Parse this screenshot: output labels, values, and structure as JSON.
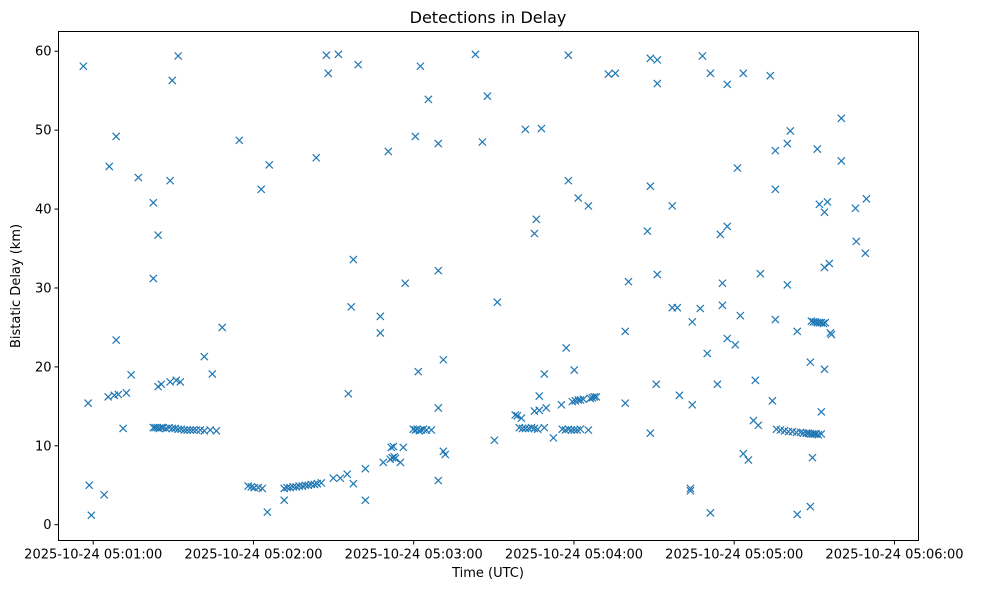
{
  "chart_data": {
    "type": "scatter",
    "title": "Detections in Delay",
    "xlabel": "Time (UTC)",
    "ylabel": "Bistatic Delay (km)",
    "x_unit": "seconds after 2025-10-24 05:00:00",
    "xlim": [
      47,
      369
    ],
    "ylim": [
      -2,
      62.5
    ],
    "xticks": [
      {
        "value": 60,
        "label": "2025-10-24 05:01:00"
      },
      {
        "value": 120,
        "label": "2025-10-24 05:02:00"
      },
      {
        "value": 180,
        "label": "2025-10-24 05:03:00"
      },
      {
        "value": 240,
        "label": "2025-10-24 05:04:00"
      },
      {
        "value": 300,
        "label": "2025-10-24 05:05:00"
      },
      {
        "value": 360,
        "label": "2025-10-24 05:06:00"
      }
    ],
    "yticks": [
      {
        "value": 0,
        "label": "0"
      },
      {
        "value": 10,
        "label": "10"
      },
      {
        "value": 20,
        "label": "20"
      },
      {
        "value": 30,
        "label": "30"
      },
      {
        "value": 40,
        "label": "40"
      },
      {
        "value": 50,
        "label": "50"
      },
      {
        "value": 60,
        "label": "60"
      }
    ],
    "grid": false,
    "marker": "x",
    "color": "#1f77b4",
    "points": [
      [
        56.3,
        58.1
      ],
      [
        58.1,
        15.4
      ],
      [
        58.5,
        5.0
      ],
      [
        59.3,
        1.2
      ],
      [
        64.1,
        3.8
      ],
      [
        66.0,
        45.4
      ],
      [
        65.6,
        16.2
      ],
      [
        67.9,
        16.4
      ],
      [
        69.4,
        16.5
      ],
      [
        72.4,
        16.7
      ],
      [
        68.6,
        49.2
      ],
      [
        68.6,
        23.4
      ],
      [
        71.2,
        12.2
      ],
      [
        74.2,
        19.0
      ],
      [
        76.9,
        44.0
      ],
      [
        82.5,
        40.8
      ],
      [
        84.3,
        36.7
      ],
      [
        82.5,
        31.2
      ],
      [
        88.8,
        43.6
      ],
      [
        89.6,
        56.3
      ],
      [
        91.8,
        59.4
      ],
      [
        84.3,
        17.5
      ],
      [
        85.5,
        17.8
      ],
      [
        88.8,
        18.1
      ],
      [
        91.1,
        18.3
      ],
      [
        92.6,
        18.1
      ],
      [
        82.5,
        12.3
      ],
      [
        83.2,
        12.3
      ],
      [
        84.0,
        12.3
      ],
      [
        84.7,
        12.2
      ],
      [
        85.5,
        12.3
      ],
      [
        86.2,
        12.3
      ],
      [
        87.3,
        12.2
      ],
      [
        88.4,
        12.3
      ],
      [
        89.6,
        12.2
      ],
      [
        90.7,
        12.2
      ],
      [
        91.8,
        12.1
      ],
      [
        92.9,
        12.1
      ],
      [
        94.1,
        12.0
      ],
      [
        95.2,
        12.0
      ],
      [
        96.3,
        12.0
      ],
      [
        97.4,
        12.0
      ],
      [
        98.6,
        12.0
      ],
      [
        100.1,
        12.0
      ],
      [
        101.6,
        11.9
      ],
      [
        103.8,
        12.0
      ],
      [
        106.1,
        11.9
      ],
      [
        101.6,
        21.3
      ],
      [
        104.6,
        19.1
      ],
      [
        108.3,
        25.0
      ],
      [
        114.7,
        48.7
      ],
      [
        118.0,
        4.9
      ],
      [
        119.2,
        4.8
      ],
      [
        120.3,
        4.7
      ],
      [
        121.8,
        4.7
      ],
      [
        123.3,
        4.6
      ],
      [
        125.2,
        1.6
      ],
      [
        122.9,
        42.5
      ],
      [
        125.9,
        45.6
      ],
      [
        131.5,
        3.1
      ],
      [
        131.5,
        4.6
      ],
      [
        132.6,
        4.7
      ],
      [
        133.7,
        4.7
      ],
      [
        134.9,
        4.8
      ],
      [
        136.0,
        4.8
      ],
      [
        137.1,
        4.9
      ],
      [
        138.3,
        4.9
      ],
      [
        139.4,
        5.0
      ],
      [
        140.5,
        5.0
      ],
      [
        141.6,
        5.1
      ],
      [
        142.8,
        5.1
      ],
      [
        143.9,
        5.2
      ],
      [
        145.4,
        5.3
      ],
      [
        149.9,
        5.9
      ],
      [
        152.5,
        5.9
      ],
      [
        155.1,
        6.4
      ],
      [
        157.4,
        5.2
      ],
      [
        161.9,
        7.1
      ],
      [
        161.9,
        3.1
      ],
      [
        155.5,
        16.6
      ],
      [
        156.6,
        27.6
      ],
      [
        157.4,
        33.6
      ],
      [
        147.3,
        59.5
      ],
      [
        148.0,
        57.2
      ],
      [
        151.8,
        59.6
      ],
      [
        159.2,
        58.3
      ],
      [
        143.5,
        46.5
      ],
      [
        167.5,
        26.4
      ],
      [
        167.5,
        24.3
      ],
      [
        170.5,
        47.3
      ],
      [
        176.8,
        30.6
      ],
      [
        168.6,
        7.9
      ],
      [
        171.2,
        8.3
      ],
      [
        172.0,
        8.5
      ],
      [
        172.7,
        8.6
      ],
      [
        173.1,
        8.4
      ],
      [
        171.6,
        9.8
      ],
      [
        172.4,
        9.9
      ],
      [
        176.1,
        9.8
      ],
      [
        175.0,
        7.9
      ],
      [
        180.6,
        49.2
      ],
      [
        182.5,
        58.1
      ],
      [
        185.5,
        53.9
      ],
      [
        189.2,
        48.3
      ],
      [
        189.2,
        32.2
      ],
      [
        181.7,
        19.4
      ],
      [
        191.1,
        20.9
      ],
      [
        189.2,
        14.8
      ],
      [
        179.8,
        12.1
      ],
      [
        180.6,
        12.0
      ],
      [
        181.3,
        12.1
      ],
      [
        182.1,
        11.9
      ],
      [
        182.8,
        12.0
      ],
      [
        183.6,
        12.1
      ],
      [
        184.8,
        12.0
      ],
      [
        186.6,
        12.0
      ],
      [
        191.1,
        9.3
      ],
      [
        191.8,
        8.9
      ],
      [
        189.2,
        5.6
      ],
      [
        203.1,
        59.6
      ],
      [
        207.6,
        54.3
      ],
      [
        205.7,
        48.5
      ],
      [
        211.3,
        28.2
      ],
      [
        210.2,
        10.7
      ],
      [
        221.8,
        50.1
      ],
      [
        227.8,
        50.2
      ],
      [
        225.9,
        38.7
      ],
      [
        225.2,
        36.9
      ],
      [
        218.0,
        13.9
      ],
      [
        218.8,
        13.8
      ],
      [
        220.3,
        13.5
      ],
      [
        219.5,
        12.3
      ],
      [
        220.7,
        12.2
      ],
      [
        221.8,
        12.2
      ],
      [
        223.0,
        12.2
      ],
      [
        224.1,
        12.3
      ],
      [
        225.2,
        12.2
      ],
      [
        226.4,
        12.1
      ],
      [
        228.9,
        12.3
      ],
      [
        225.2,
        14.4
      ],
      [
        227.0,
        14.5
      ],
      [
        229.6,
        14.8
      ],
      [
        227.0,
        16.3
      ],
      [
        228.9,
        19.1
      ],
      [
        232.3,
        11.0
      ],
      [
        235.3,
        15.2
      ],
      [
        237.1,
        22.4
      ],
      [
        237.9,
        43.6
      ],
      [
        237.9,
        59.5
      ],
      [
        240.1,
        19.6
      ],
      [
        239.4,
        15.6
      ],
      [
        240.5,
        15.7
      ],
      [
        241.6,
        15.8
      ],
      [
        242.4,
        15.8
      ],
      [
        243.5,
        15.9
      ],
      [
        246.1,
        16.0
      ],
      [
        246.9,
        16.1
      ],
      [
        247.6,
        16.2
      ],
      [
        248.4,
        16.2
      ],
      [
        235.6,
        12.1
      ],
      [
        236.8,
        12.0
      ],
      [
        237.9,
        12.1
      ],
      [
        239.0,
        12.0
      ],
      [
        240.1,
        12.0
      ],
      [
        241.2,
        12.0
      ],
      [
        242.4,
        12.1
      ],
      [
        245.4,
        12.0
      ],
      [
        241.6,
        41.4
      ],
      [
        245.4,
        40.4
      ],
      [
        259.2,
        15.4
      ],
      [
        259.2,
        24.5
      ],
      [
        260.4,
        30.8
      ],
      [
        252.9,
        57.1
      ],
      [
        255.5,
        57.2
      ],
      [
        268.6,
        59.1
      ],
      [
        271.2,
        58.9
      ],
      [
        271.2,
        55.9
      ],
      [
        268.6,
        42.9
      ],
      [
        267.5,
        37.2
      ],
      [
        271.2,
        31.7
      ],
      [
        268.6,
        11.6
      ],
      [
        270.8,
        17.8
      ],
      [
        276.8,
        40.4
      ],
      [
        276.8,
        27.5
      ],
      [
        278.7,
        27.5
      ],
      [
        279.5,
        16.4
      ],
      [
        284.3,
        25.7
      ],
      [
        287.3,
        27.4
      ],
      [
        284.3,
        15.2
      ],
      [
        283.6,
        4.6
      ],
      [
        283.6,
        4.3
      ],
      [
        291.1,
        1.5
      ],
      [
        288.1,
        59.4
      ],
      [
        291.1,
        57.2
      ],
      [
        297.4,
        55.8
      ],
      [
        303.4,
        57.2
      ],
      [
        313.5,
        56.9
      ],
      [
        301.2,
        45.2
      ],
      [
        289.9,
        21.7
      ],
      [
        293.7,
        17.8
      ],
      [
        295.6,
        30.6
      ],
      [
        295.6,
        27.8
      ],
      [
        294.8,
        36.8
      ],
      [
        297.4,
        37.8
      ],
      [
        297.4,
        23.6
      ],
      [
        300.4,
        22.8
      ],
      [
        302.3,
        26.5
      ],
      [
        307.2,
        13.2
      ],
      [
        309.0,
        12.6
      ],
      [
        303.4,
        9.0
      ],
      [
        305.3,
        8.2
      ],
      [
        307.9,
        18.3
      ],
      [
        309.8,
        31.8
      ],
      [
        314.3,
        15.7
      ],
      [
        315.4,
        26.0
      ],
      [
        315.4,
        42.5
      ],
      [
        315.4,
        47.4
      ],
      [
        319.9,
        30.4
      ],
      [
        319.9,
        48.3
      ],
      [
        321.0,
        49.9
      ],
      [
        323.6,
        24.5
      ],
      [
        328.5,
        20.6
      ],
      [
        328.5,
        2.3
      ],
      [
        323.6,
        1.3
      ],
      [
        329.3,
        8.5
      ],
      [
        332.6,
        14.3
      ],
      [
        333.8,
        19.7
      ],
      [
        331.1,
        47.6
      ],
      [
        340.1,
        51.5
      ],
      [
        340.1,
        46.1
      ],
      [
        331.9,
        40.6
      ],
      [
        334.9,
        40.9
      ],
      [
        333.8,
        39.6
      ],
      [
        333.8,
        32.6
      ],
      [
        335.6,
        33.1
      ],
      [
        345.4,
        40.1
      ],
      [
        349.5,
        41.3
      ],
      [
        345.7,
        35.9
      ],
      [
        349.1,
        34.4
      ],
      [
        328.9,
        25.8
      ],
      [
        329.6,
        25.7
      ],
      [
        330.4,
        25.7
      ],
      [
        331.1,
        25.6
      ],
      [
        331.9,
        25.6
      ],
      [
        332.6,
        25.6
      ],
      [
        333.4,
        25.5
      ],
      [
        334.1,
        25.6
      ],
      [
        336.0,
        24.3
      ],
      [
        336.4,
        24.1
      ],
      [
        315.8,
        12.1
      ],
      [
        317.3,
        12.0
      ],
      [
        318.8,
        11.9
      ],
      [
        320.3,
        11.8
      ],
      [
        321.8,
        11.8
      ],
      [
        323.3,
        11.7
      ],
      [
        324.8,
        11.7
      ],
      [
        325.9,
        11.6
      ],
      [
        327.0,
        11.6
      ],
      [
        327.8,
        11.6
      ],
      [
        328.5,
        11.5
      ],
      [
        329.3,
        11.5
      ],
      [
        330.0,
        11.5
      ],
      [
        330.7,
        11.5
      ],
      [
        331.5,
        11.4
      ],
      [
        332.6,
        11.5
      ]
    ]
  }
}
